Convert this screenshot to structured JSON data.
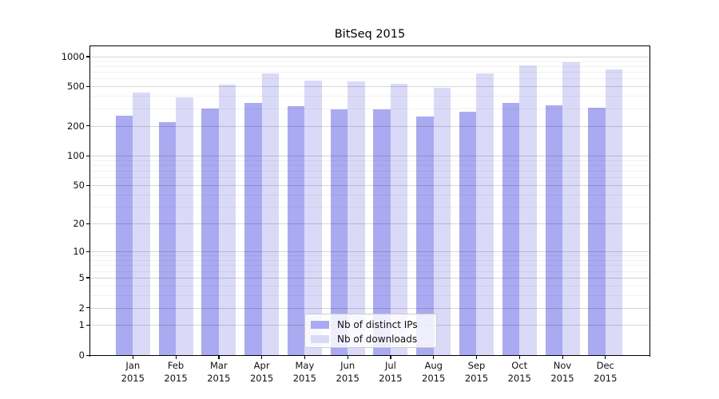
{
  "chart_data": {
    "type": "bar",
    "title": "BitSeq 2015",
    "yscale": "log1p",
    "ylim": [
      0,
      1268
    ],
    "yticks": [
      0,
      1,
      2,
      5,
      10,
      20,
      50,
      100,
      200,
      500,
      1000
    ],
    "grid": "major and minor horizontal gridlines",
    "legend_position": "lower center",
    "categories": [
      {
        "month": "Jan",
        "year": "2015"
      },
      {
        "month": "Feb",
        "year": "2015"
      },
      {
        "month": "Mar",
        "year": "2015"
      },
      {
        "month": "Apr",
        "year": "2015"
      },
      {
        "month": "May",
        "year": "2015"
      },
      {
        "month": "Jun",
        "year": "2015"
      },
      {
        "month": "Jul",
        "year": "2015"
      },
      {
        "month": "Aug",
        "year": "2015"
      },
      {
        "month": "Sep",
        "year": "2015"
      },
      {
        "month": "Oct",
        "year": "2015"
      },
      {
        "month": "Nov",
        "year": "2015"
      },
      {
        "month": "Dec",
        "year": "2015"
      }
    ],
    "series": [
      {
        "name": "Nb of distinct IPs",
        "color": "#aaaaf2",
        "values": [
          254,
          220,
          300,
          344,
          319,
          293,
          295,
          250,
          279,
          342,
          320,
          306
        ]
      },
      {
        "name": "Nb of downloads",
        "color": "#dadaf8",
        "values": [
          434,
          387,
          518,
          677,
          574,
          564,
          536,
          486,
          676,
          815,
          881,
          746
        ]
      }
    ]
  }
}
